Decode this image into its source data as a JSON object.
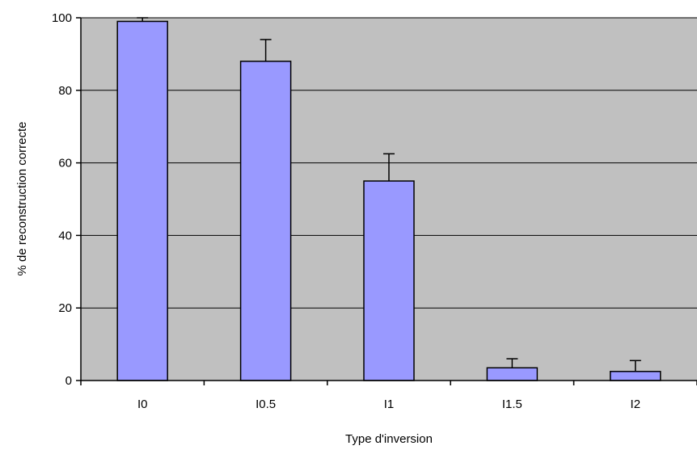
{
  "chart_data": {
    "type": "bar",
    "title": "",
    "xlabel": "Type d'inversion",
    "ylabel": "% de reconstruction correcte",
    "categories": [
      "I0",
      "I0.5",
      "I1",
      "I1.5",
      "I2"
    ],
    "values": [
      99,
      88,
      55,
      3.5,
      2.5
    ],
    "error_plus": [
      1,
      6,
      7.5,
      2.5,
      3
    ],
    "ylim": [
      0,
      100
    ],
    "yticks": [
      0,
      20,
      40,
      60,
      80,
      100
    ],
    "grid": true,
    "legend": "none",
    "colors": {
      "bar_fill": "#9999ff",
      "bar_stroke": "#000000",
      "plot_background": "#c0c0c0",
      "gridline": "#000000"
    }
  }
}
